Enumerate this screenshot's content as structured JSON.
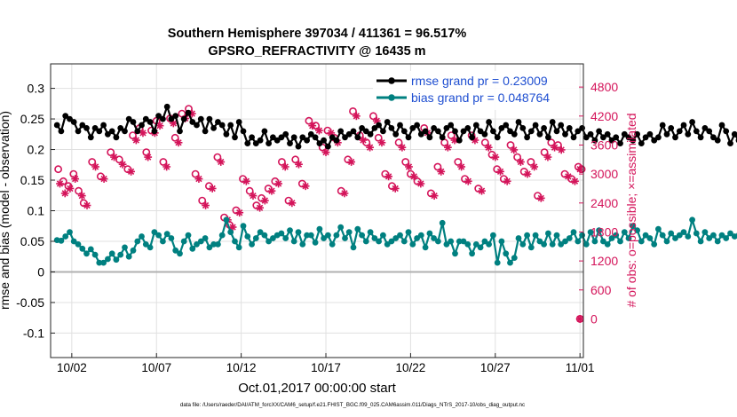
{
  "chart_data": {
    "type": "line",
    "title_line1": "Southern Hemisphere 397034 / 411361 = 96.517%",
    "title_line2": "GPSRO_REFRACTIVITY @ 16435 m",
    "xlabel": "Oct.01,2017 00:00:00 start",
    "ylabel_left": "rmse and bias (model - observation)",
    "ylabel_right": "# of obs: o=possible; ×=assimilated",
    "xlim": [
      0.75,
      32.2
    ],
    "ylim_left": [
      -0.14,
      0.34
    ],
    "ylim_right": [
      -800,
      5280
    ],
    "x_ticks": [
      2,
      7,
      12,
      17,
      22,
      27,
      32
    ],
    "x_tick_labels": [
      "10/02",
      "10/07",
      "10/12",
      "10/17",
      "10/22",
      "10/27",
      "11/01"
    ],
    "y_ticks_left": [
      0.3,
      0.25,
      0.2,
      0.15,
      0.1,
      0.05,
      0,
      -0.05,
      -0.1
    ],
    "y_tick_labels_left": [
      "0.3",
      "0.25",
      "0.2",
      "0.15",
      "0.1",
      "0.05",
      "0",
      "-0.05",
      "-0.1"
    ],
    "y_ticks_right": [
      4800,
      4200,
      3600,
      3000,
      2400,
      1800,
      1200,
      600,
      0
    ],
    "y_tick_labels_right": [
      "4800",
      "4200",
      "3600",
      "3000",
      "2400",
      "1800",
      "1200",
      "600",
      "0"
    ],
    "grid": true,
    "legend_position": "top-right",
    "legend": [
      "rmse grand pr = 0.23009",
      "bias grand pr = 0.048764"
    ],
    "footer": "data file: /Users/raeder/DAI/ATM_forcXX/CAM6_setup/f.e21.FHIST_BGC.f09_025.CAM6assim.011/Diags_NTrS_2017-10/obs_diag_output.nc",
    "colors": {
      "rmse": "#000000",
      "bias": "#008080",
      "obs": "#d4145a",
      "zero_line": "#b0b0b0",
      "grid": "#e0e0e0",
      "legend_text": "#1f4fd1"
    },
    "series": [
      {
        "name": "rmse grand pr",
        "axis": "left",
        "color": "#000000",
        "x_start": 1.125,
        "x_step": 0.25,
        "values": [
          0.24,
          0.23,
          0.255,
          0.25,
          0.245,
          0.23,
          0.24,
          0.235,
          0.22,
          0.235,
          0.23,
          0.24,
          0.225,
          0.23,
          0.22,
          0.235,
          0.23,
          0.25,
          0.245,
          0.23,
          0.24,
          0.25,
          0.245,
          0.23,
          0.255,
          0.25,
          0.27,
          0.25,
          0.255,
          0.23,
          0.25,
          0.26,
          0.245,
          0.24,
          0.25,
          0.23,
          0.25,
          0.235,
          0.245,
          0.24,
          0.225,
          0.24,
          0.22,
          0.245,
          0.23,
          0.21,
          0.22,
          0.21,
          0.215,
          0.23,
          0.21,
          0.22,
          0.215,
          0.22,
          0.225,
          0.21,
          0.22,
          0.205,
          0.22,
          0.215,
          0.225,
          0.22,
          0.21,
          0.215,
          0.205,
          0.22,
          0.215,
          0.23,
          0.22,
          0.225,
          0.23,
          0.22,
          0.235,
          0.23,
          0.225,
          0.235,
          0.24,
          0.23,
          0.245,
          0.235,
          0.225,
          0.24,
          0.23,
          0.22,
          0.235,
          0.24,
          0.225,
          0.23,
          0.22,
          0.235,
          0.23,
          0.22,
          0.235,
          0.24,
          0.23,
          0.215,
          0.23,
          0.235,
          0.22,
          0.24,
          0.23,
          0.225,
          0.245,
          0.23,
          0.22,
          0.235,
          0.24,
          0.23,
          0.225,
          0.245,
          0.235,
          0.22,
          0.23,
          0.24,
          0.225,
          0.235,
          0.22,
          0.245,
          0.23,
          0.24,
          0.225,
          0.235,
          0.22,
          0.23,
          0.235,
          0.22,
          0.225,
          0.215,
          0.23,
          0.22,
          0.225,
          0.215,
          0.22,
          0.21,
          0.225,
          0.22,
          0.215,
          0.225,
          0.21,
          0.22,
          0.225,
          0.215,
          0.22,
          0.24,
          0.225,
          0.235,
          0.22,
          0.23,
          0.24,
          0.225,
          0.245,
          0.23,
          0.22,
          0.235,
          0.23,
          0.22,
          0.215,
          0.24,
          0.23,
          0.21,
          0.225,
          0.215,
          0.235,
          0.2,
          0.22,
          0.23,
          0.215,
          0.225,
          0.235,
          0.22,
          0.2,
          0.215,
          0.23,
          0.235,
          0.215,
          0.225,
          0.23,
          0.235,
          0.225,
          0.215,
          0.23,
          0.24,
          0.235,
          0.225,
          0.23,
          0.215,
          0.225,
          0.23,
          0.235,
          0.22,
          0.225,
          0.215,
          0.23,
          0.24,
          0.23,
          0.22,
          0.215,
          0.215,
          0.21
        ]
      },
      {
        "name": "bias grand pr",
        "axis": "left",
        "color": "#008080",
        "x_start": 1.125,
        "x_step": 0.25,
        "values": [
          0.052,
          0.051,
          0.058,
          0.065,
          0.05,
          0.045,
          0.038,
          0.03,
          0.037,
          0.028,
          0.015,
          0.015,
          0.021,
          0.03,
          0.02,
          0.028,
          0.04,
          0.025,
          0.035,
          0.05,
          0.058,
          0.045,
          0.04,
          0.065,
          0.06,
          0.05,
          0.062,
          0.055,
          0.035,
          0.03,
          0.05,
          0.06,
          0.038,
          0.045,
          0.05,
          0.055,
          0.04,
          0.045,
          0.045,
          0.06,
          0.085,
          0.065,
          0.05,
          0.04,
          0.075,
          0.058,
          0.045,
          0.055,
          0.065,
          0.06,
          0.05,
          0.055,
          0.06,
          0.063,
          0.055,
          0.068,
          0.05,
          0.065,
          0.045,
          0.06,
          0.06,
          0.048,
          0.07,
          0.055,
          0.06,
          0.045,
          0.06,
          0.073,
          0.055,
          0.065,
          0.04,
          0.07,
          0.06,
          0.05,
          0.065,
          0.055,
          0.05,
          0.06,
          0.045,
          0.05,
          0.055,
          0.06,
          0.05,
          0.065,
          0.045,
          0.055,
          0.06,
          0.04,
          0.063,
          0.055,
          0.05,
          0.08,
          0.045,
          0.05,
          0.03,
          0.05,
          0.05,
          0.045,
          0.03,
          0.045,
          0.04,
          0.05,
          0.045,
          0.06,
          0.015,
          0.05,
          0.03,
          0.015,
          0.023,
          0.055,
          0.045,
          0.06,
          0.04,
          0.06,
          0.05,
          0.045,
          0.063,
          0.045,
          0.06,
          0.045,
          0.05,
          0.055,
          0.065,
          0.05,
          0.06,
          0.045,
          0.065,
          0.05,
          0.068,
          0.05,
          0.045,
          0.055,
          0.06,
          0.05,
          0.065,
          0.055,
          0.075,
          0.068,
          0.05,
          0.06,
          0.055,
          0.045,
          0.07,
          0.06,
          0.05,
          0.063,
          0.055,
          0.06,
          0.065,
          0.058,
          0.085,
          0.063,
          0.05,
          0.065,
          0.055,
          0.06,
          0.05,
          0.06,
          0.055,
          0.063,
          0.058,
          0.06,
          0.073,
          0.055,
          0.05,
          0.065,
          0.06,
          0.045,
          0.04,
          0.05,
          0.055,
          0.06,
          0.045,
          0.06,
          0.04,
          0.055,
          0.063,
          0.05,
          0.045,
          0.06,
          0.045,
          0.038,
          0.05,
          0.045,
          0.04,
          0.06,
          0.04,
          0.035,
          0.05,
          0.055,
          0.03,
          0.025,
          0.045,
          0.04,
          0.055,
          0.05,
          0.06,
          0.045,
          0.05,
          0.065,
          0.055,
          0.045,
          0.06,
          0.04,
          0.038,
          0.038
        ]
      },
      {
        "name": "possible",
        "axis": "right",
        "color": "#d4145a",
        "marker": "circle",
        "x": [
          1.2,
          1.5,
          1.8,
          2.1,
          2.4,
          2.7,
          3.2,
          3.7,
          4.3,
          4.8,
          5.3,
          5.6,
          6.0,
          6.4,
          6.7,
          7.0,
          7.4,
          7.8,
          8.1,
          8.5,
          8.9,
          9.3,
          9.7,
          10.1,
          10.6,
          11.0,
          11.3,
          11.7,
          12.1,
          12.5,
          12.9,
          13.2,
          13.6,
          14.0,
          14.4,
          14.8,
          15.2,
          15.6,
          16.0,
          16.4,
          16.8,
          17.1,
          17.5,
          17.9,
          18.3,
          18.6,
          19.0,
          19.4,
          19.8,
          20.1,
          20.5,
          20.9,
          21.3,
          21.7,
          22.0,
          22.4,
          22.8,
          23.2,
          23.6,
          24.0,
          24.4,
          24.8,
          25.2,
          25.6,
          26.0,
          26.4,
          26.8,
          27.1,
          27.5,
          27.9,
          28.3,
          28.7,
          29.1,
          29.5,
          29.9,
          30.3,
          30.7,
          31.1,
          31.5,
          31.9,
          32.1
        ],
        "values": [
          3100,
          2850,
          2750,
          3000,
          2650,
          2400,
          3250,
          2950,
          3450,
          3300,
          3100,
          3800,
          3950,
          3450,
          3900,
          4100,
          3250,
          4150,
          3750,
          4250,
          4350,
          3000,
          2450,
          2750,
          3350,
          2100,
          1950,
          2250,
          2900,
          2650,
          2350,
          2500,
          2700,
          2850,
          3250,
          2450,
          3300,
          2800,
          4100,
          4000,
          3550,
          3900,
          3750,
          2650,
          3300,
          4300,
          3800,
          3650,
          4200,
          3750,
          3000,
          2750,
          3650,
          3250,
          3000,
          2850,
          3950,
          2600,
          3150,
          3650,
          3800,
          3250,
          2900,
          3800,
          2700,
          3650,
          3400,
          3100,
          2900,
          3600,
          3350,
          3050,
          3250,
          2550,
          3450,
          3650,
          3600,
          3000,
          2900,
          3150,
          3100
        ]
      },
      {
        "name": "assimilated",
        "axis": "right",
        "color": "#d4145a",
        "marker": "asterisk",
        "x": [
          1.3,
          1.6,
          1.9,
          2.2,
          2.6,
          2.9,
          3.4,
          3.9,
          4.5,
          5.0,
          5.5,
          5.8,
          6.2,
          6.5,
          6.9,
          7.2,
          7.6,
          8.0,
          8.3,
          8.7,
          9.1,
          9.5,
          9.9,
          10.3,
          10.8,
          11.2,
          11.5,
          11.9,
          12.3,
          12.7,
          13.1,
          13.4,
          13.8,
          14.2,
          14.6,
          15.0,
          15.4,
          15.8,
          16.2,
          16.6,
          17.0,
          17.3,
          17.7,
          18.1,
          18.5,
          18.8,
          19.2,
          19.6,
          20.0,
          20.3,
          20.7,
          21.1,
          21.5,
          21.9,
          22.2,
          22.6,
          23.0,
          23.4,
          23.8,
          24.2,
          24.6,
          25.0,
          25.4,
          25.8,
          26.2,
          26.6,
          27.0,
          27.3,
          27.7,
          28.1,
          28.5,
          28.9,
          29.3,
          29.7,
          30.1,
          30.5,
          30.9,
          31.3,
          31.7,
          32.0
        ],
        "values": [
          2800,
          2600,
          2700,
          2900,
          2550,
          2350,
          3150,
          2900,
          3350,
          3200,
          3050,
          3700,
          3850,
          3350,
          3850,
          4000,
          3150,
          4050,
          3650,
          4150,
          4250,
          2900,
          2350,
          2700,
          3250,
          2050,
          1900,
          2200,
          2850,
          2550,
          2300,
          2450,
          2650,
          2800,
          3150,
          2400,
          3200,
          2750,
          4000,
          3900,
          3450,
          3850,
          3650,
          2600,
          3250,
          4200,
          3700,
          3550,
          4100,
          3650,
          2950,
          2700,
          3550,
          3150,
          2950,
          2800,
          3850,
          2550,
          3050,
          3550,
          3700,
          3150,
          2850,
          3700,
          2650,
          3550,
          3350,
          3050,
          2850,
          3500,
          3250,
          3000,
          3150,
          2500,
          3350,
          3550,
          3500,
          2950,
          2850,
          3100
        ]
      },
      {
        "name": "possible-final",
        "axis": "right",
        "color": "#d4145a",
        "marker": "circle",
        "x": [
          32.0
        ],
        "values": [
          0
        ]
      },
      {
        "name": "assimilated-final",
        "axis": "right",
        "color": "#d4145a",
        "marker": "asterisk",
        "x": [
          32.0
        ],
        "values": [
          0
        ]
      }
    ]
  }
}
